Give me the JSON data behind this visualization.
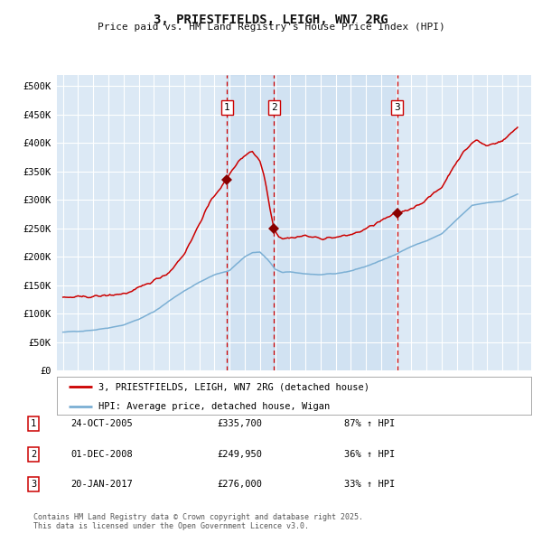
{
  "title": "3, PRIESTFIELDS, LEIGH, WN7 2RG",
  "subtitle": "Price paid vs. HM Land Registry's House Price Index (HPI)",
  "background_color": "#ffffff",
  "plot_bg_color": "#dce9f5",
  "grid_color": "#ffffff",
  "red_line_color": "#cc0000",
  "blue_line_color": "#7bafd4",
  "sale_marker_color": "#880000",
  "vline_color": "#cc0000",
  "ylim": [
    0,
    520000
  ],
  "yticks": [
    0,
    50000,
    100000,
    150000,
    200000,
    250000,
    300000,
    350000,
    400000,
    450000,
    500000
  ],
  "ytick_labels": [
    "£0",
    "£50K",
    "£100K",
    "£150K",
    "£200K",
    "£250K",
    "£300K",
    "£350K",
    "£400K",
    "£450K",
    "£500K"
  ],
  "sales": [
    {
      "date_num": 2005.82,
      "price": 335700,
      "label": "1"
    },
    {
      "date_num": 2008.92,
      "price": 249950,
      "label": "2"
    },
    {
      "date_num": 2017.05,
      "price": 276000,
      "label": "3"
    }
  ],
  "sale_annotations": [
    {
      "label": "1",
      "date": "24-OCT-2005",
      "price": "£335,700",
      "hpi": "87% ↑ HPI"
    },
    {
      "label": "2",
      "date": "01-DEC-2008",
      "price": "£249,950",
      "hpi": "36% ↑ HPI"
    },
    {
      "label": "3",
      "date": "20-JAN-2017",
      "price": "£276,000",
      "hpi": "33% ↑ HPI"
    }
  ],
  "legend_red": "3, PRIESTFIELDS, LEIGH, WN7 2RG (detached house)",
  "legend_blue": "HPI: Average price, detached house, Wigan",
  "footnote": "Contains HM Land Registry data © Crown copyright and database right 2025.\nThis data is licensed under the Open Government Licence v3.0.",
  "xlim_left": 1994.6,
  "xlim_right": 2025.9
}
